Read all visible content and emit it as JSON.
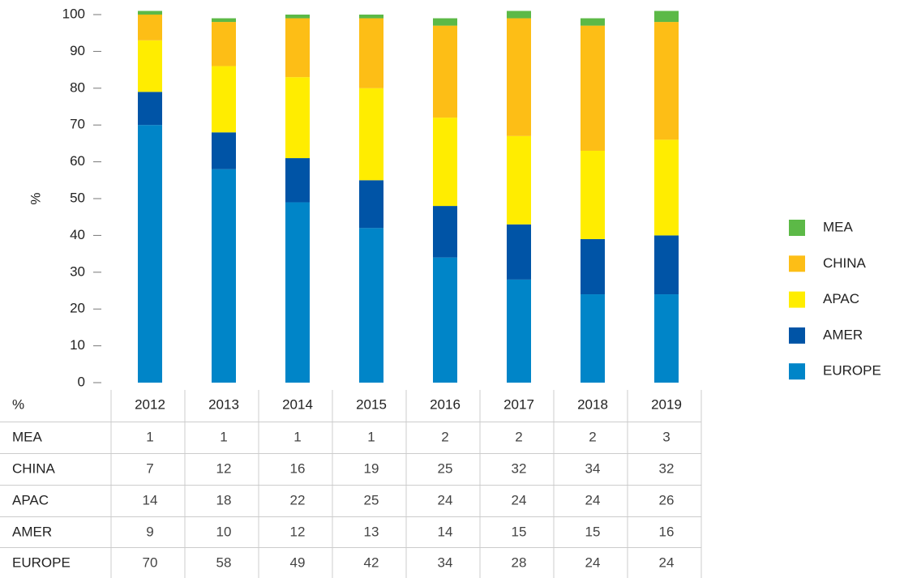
{
  "chart_data": {
    "type": "stacked_bar",
    "ylabel": "%",
    "table_label": "%",
    "categories": [
      "2012",
      "2013",
      "2014",
      "2015",
      "2016",
      "2017",
      "2018",
      "2019"
    ],
    "series": [
      {
        "name": "MEA",
        "color": "#5cb947",
        "values": [
          1,
          1,
          1,
          1,
          2,
          2,
          2,
          3
        ]
      },
      {
        "name": "CHINA",
        "color": "#fdbe16",
        "values": [
          7,
          12,
          16,
          19,
          25,
          32,
          34,
          32
        ]
      },
      {
        "name": "APAC",
        "color": "#ffed00",
        "values": [
          14,
          18,
          22,
          25,
          24,
          24,
          24,
          26
        ]
      },
      {
        "name": "AMER",
        "color": "#0054a6",
        "values": [
          9,
          10,
          12,
          13,
          14,
          15,
          15,
          16
        ]
      },
      {
        "name": "EUROPE",
        "color": "#0085c8",
        "values": [
          70,
          58,
          49,
          42,
          34,
          28,
          24,
          24
        ]
      }
    ],
    "ylim": [
      0,
      100
    ],
    "yticks": [
      0,
      10,
      20,
      30,
      40,
      50,
      60,
      70,
      80,
      90,
      100
    ],
    "legend": "right"
  }
}
